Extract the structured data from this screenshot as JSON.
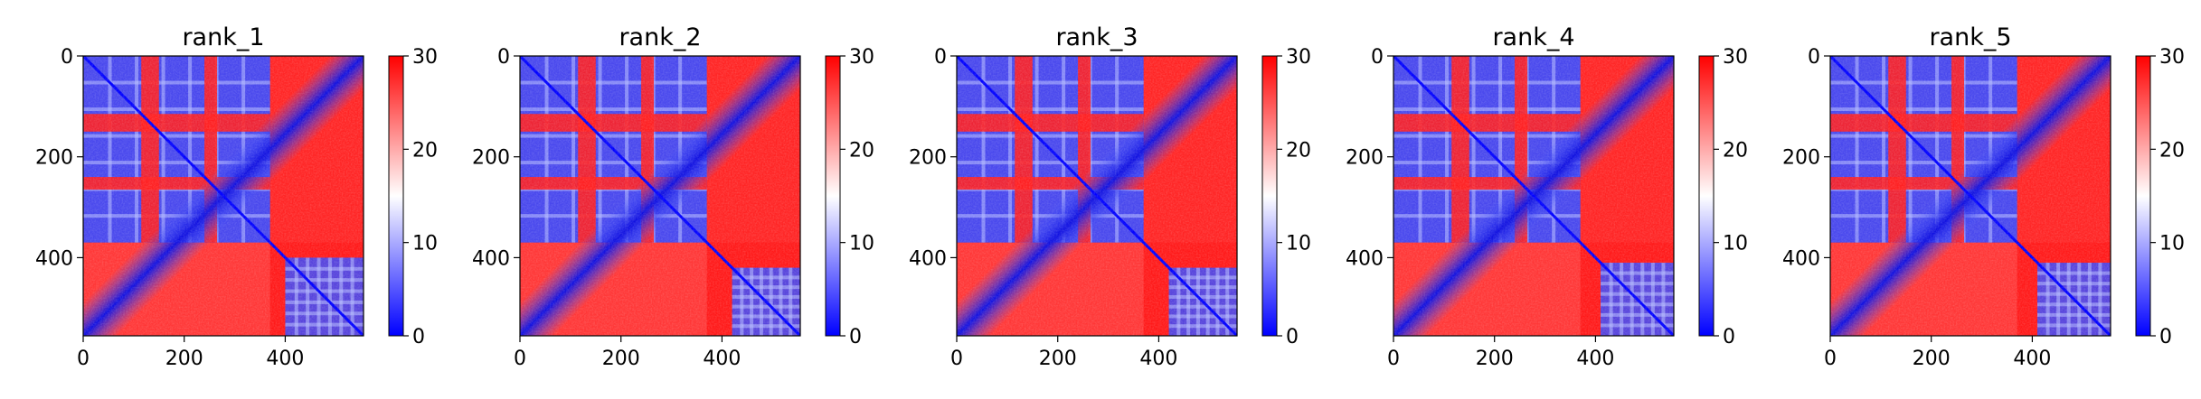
{
  "chart_data": [
    {
      "type": "heatmap",
      "title": "rank_1",
      "xlim": [
        0,
        555
      ],
      "ylim": [
        555,
        0
      ],
      "x_ticks": [
        "0",
        "200",
        "400"
      ],
      "y_ticks": [
        "0",
        "200",
        "400"
      ],
      "colorbar": {
        "min": 0,
        "max": 30,
        "ticks": [
          "0",
          "10",
          "20",
          "30"
        ],
        "colormap": "bwr"
      },
      "matrix_size": 555,
      "domains": [
        [
          0,
          370
        ],
        [
          400,
          555
        ]
      ],
      "bands": [
        [
          115,
          150
        ],
        [
          240,
          265
        ]
      ]
    },
    {
      "type": "heatmap",
      "title": "rank_2",
      "xlim": [
        0,
        555
      ],
      "ylim": [
        555,
        0
      ],
      "x_ticks": [
        "0",
        "200",
        "400"
      ],
      "y_ticks": [
        "0",
        "200",
        "400"
      ],
      "colorbar": {
        "min": 0,
        "max": 30,
        "ticks": [
          "0",
          "10",
          "20",
          "30"
        ],
        "colormap": "bwr"
      },
      "matrix_size": 555,
      "domains": [
        [
          0,
          370
        ],
        [
          420,
          555
        ]
      ],
      "bands": [
        [
          115,
          150
        ],
        [
          240,
          265
        ]
      ]
    },
    {
      "type": "heatmap",
      "title": "rank_3",
      "xlim": [
        0,
        555
      ],
      "ylim": [
        555,
        0
      ],
      "x_ticks": [
        "0",
        "200",
        "400"
      ],
      "y_ticks": [
        "0",
        "200",
        "400"
      ],
      "colorbar": {
        "min": 0,
        "max": 30,
        "ticks": [
          "0",
          "10",
          "20",
          "30"
        ],
        "colormap": "bwr"
      },
      "matrix_size": 555,
      "domains": [
        [
          0,
          370
        ],
        [
          420,
          555
        ]
      ],
      "bands": [
        [
          115,
          150
        ],
        [
          240,
          265
        ]
      ]
    },
    {
      "type": "heatmap",
      "title": "rank_4",
      "xlim": [
        0,
        555
      ],
      "ylim": [
        555,
        0
      ],
      "x_ticks": [
        "0",
        "200",
        "400"
      ],
      "y_ticks": [
        "0",
        "200",
        "400"
      ],
      "colorbar": {
        "min": 0,
        "max": 30,
        "ticks": [
          "0",
          "10",
          "20",
          "30"
        ],
        "colormap": "bwr"
      },
      "matrix_size": 555,
      "domains": [
        [
          0,
          370
        ],
        [
          410,
          555
        ]
      ],
      "bands": [
        [
          115,
          150
        ],
        [
          240,
          265
        ]
      ]
    },
    {
      "type": "heatmap",
      "title": "rank_5",
      "xlim": [
        0,
        555
      ],
      "ylim": [
        555,
        0
      ],
      "x_ticks": [
        "0",
        "200",
        "400"
      ],
      "y_ticks": [
        "0",
        "200",
        "400"
      ],
      "colorbar": {
        "min": 0,
        "max": 30,
        "ticks": [
          "0",
          "10",
          "20",
          "30"
        ],
        "colormap": "bwr"
      },
      "matrix_size": 555,
      "domains": [
        [
          0,
          370
        ],
        [
          410,
          555
        ]
      ],
      "bands": [
        [
          115,
          150
        ],
        [
          240,
          265
        ]
      ]
    }
  ],
  "colors": {
    "low": "#0000ff",
    "mid": "#ffffff",
    "high": "#ff0000"
  }
}
